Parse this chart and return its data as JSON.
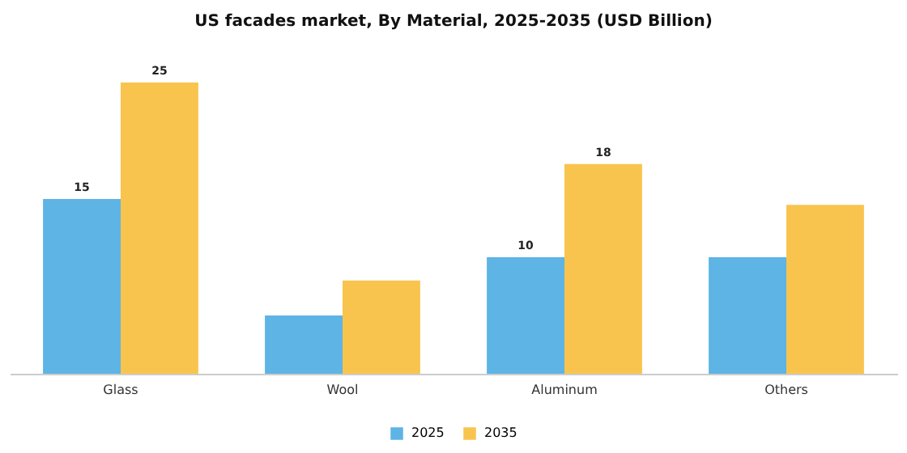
{
  "chart_data": {
    "type": "bar",
    "title": "US facades market, By Material, 2025-2035 (USD Billion)",
    "categories": [
      "Glass",
      "Wool",
      "Aluminum",
      "Others"
    ],
    "series": [
      {
        "name": "2025",
        "color": "#5db4e5",
        "values": [
          15,
          5,
          10,
          10
        ],
        "value_labels": [
          "15",
          null,
          "10",
          null
        ]
      },
      {
        "name": "2035",
        "color": "#f9c44e",
        "values": [
          25,
          8,
          18,
          14.5
        ],
        "value_labels": [
          "25",
          null,
          "18",
          null
        ]
      }
    ],
    "legend": "bottom",
    "grid": false
  }
}
